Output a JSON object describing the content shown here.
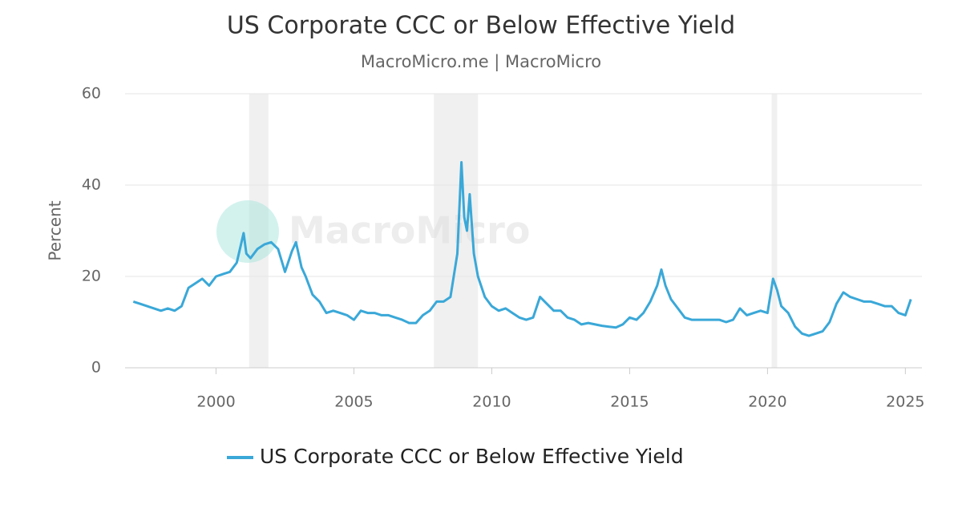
{
  "chart_data": {
    "type": "line",
    "title": "US Corporate CCC or Below Effective Yield",
    "subtitle": "MacroMicro.me | MacroMicro",
    "watermark": "MacroMicro",
    "y_label": "Percent",
    "xlim": [
      1996.7,
      2025.6
    ],
    "xticks": [
      2000,
      2005,
      2010,
      2015,
      2020,
      2025
    ],
    "ylim": [
      0,
      60
    ],
    "yticks": [
      0,
      20,
      40,
      60
    ],
    "grid": true,
    "legend": "bottom",
    "shaded_periods": [
      [
        2001.2,
        2001.9
      ],
      [
        2007.9,
        2009.5
      ],
      [
        2020.15,
        2020.35
      ]
    ],
    "x": [
      1997.0,
      1997.25,
      1997.5,
      1997.75,
      1998.0,
      1998.25,
      1998.5,
      1998.75,
      1999.0,
      1999.25,
      1999.5,
      1999.75,
      2000.0,
      2000.25,
      2000.5,
      2000.75,
      2001.0,
      2001.1,
      2001.25,
      2001.5,
      2001.75,
      2002.0,
      2002.25,
      2002.5,
      2002.75,
      2002.9,
      2003.1,
      2003.25,
      2003.5,
      2003.75,
      2004.0,
      2004.25,
      2004.5,
      2004.75,
      2005.0,
      2005.25,
      2005.5,
      2005.75,
      2006.0,
      2006.25,
      2006.5,
      2006.75,
      2007.0,
      2007.25,
      2007.5,
      2007.75,
      2008.0,
      2008.25,
      2008.5,
      2008.75,
      2008.9,
      2009.0,
      2009.1,
      2009.2,
      2009.35,
      2009.5,
      2009.75,
      2010.0,
      2010.25,
      2010.5,
      2010.75,
      2011.0,
      2011.25,
      2011.5,
      2011.75,
      2012.0,
      2012.25,
      2012.5,
      2012.75,
      2013.0,
      2013.25,
      2013.5,
      2013.75,
      2014.0,
      2014.25,
      2014.5,
      2014.75,
      2015.0,
      2015.25,
      2015.5,
      2015.75,
      2016.0,
      2016.15,
      2016.3,
      2016.5,
      2016.75,
      2017.0,
      2017.25,
      2017.5,
      2017.75,
      2018.0,
      2018.25,
      2018.5,
      2018.75,
      2019.0,
      2019.25,
      2019.5,
      2019.75,
      2020.0,
      2020.2,
      2020.35,
      2020.5,
      2020.75,
      2021.0,
      2021.25,
      2021.5,
      2021.75,
      2022.0,
      2022.25,
      2022.5,
      2022.75,
      2023.0,
      2023.25,
      2023.5,
      2023.75,
      2024.0,
      2024.25,
      2024.5,
      2024.75,
      2025.0,
      2025.2
    ],
    "series": [
      {
        "name": "US Corporate CCC or Below Effective Yield",
        "color": "#3aa8d8",
        "values": [
          14.5,
          14,
          13.5,
          13,
          12.5,
          13,
          12.5,
          13.5,
          17.5,
          18.5,
          19.5,
          18,
          20,
          20.5,
          21,
          23,
          29.5,
          25,
          24,
          26,
          27,
          27.5,
          26,
          21,
          25.5,
          27.5,
          22,
          20,
          16,
          14.5,
          12,
          12.5,
          12,
          11.5,
          10.5,
          12.5,
          12,
          12,
          11.5,
          11.5,
          11,
          10.5,
          9.8,
          9.8,
          11.5,
          12.5,
          14.5,
          14.5,
          15.5,
          25,
          45,
          33,
          30,
          38,
          25,
          20,
          15.5,
          13.5,
          12.5,
          13,
          12,
          11,
          10.5,
          11,
          15.5,
          14,
          12.5,
          12.5,
          11,
          10.5,
          9.5,
          9.8,
          9.5,
          9.2,
          9,
          8.8,
          9.5,
          11,
          10.5,
          12,
          14.5,
          18,
          21.5,
          18,
          15,
          13,
          11,
          10.5,
          10.5,
          10.5,
          10.5,
          10.5,
          10,
          10.5,
          13,
          11.5,
          12,
          12.5,
          12,
          19.5,
          17,
          13.5,
          12,
          9,
          7.5,
          7,
          7.5,
          8,
          10,
          14,
          16.5,
          15.5,
          15,
          14.5,
          14.5,
          14,
          13.5,
          13.5,
          12,
          11.5,
          15
        ]
      }
    ]
  }
}
